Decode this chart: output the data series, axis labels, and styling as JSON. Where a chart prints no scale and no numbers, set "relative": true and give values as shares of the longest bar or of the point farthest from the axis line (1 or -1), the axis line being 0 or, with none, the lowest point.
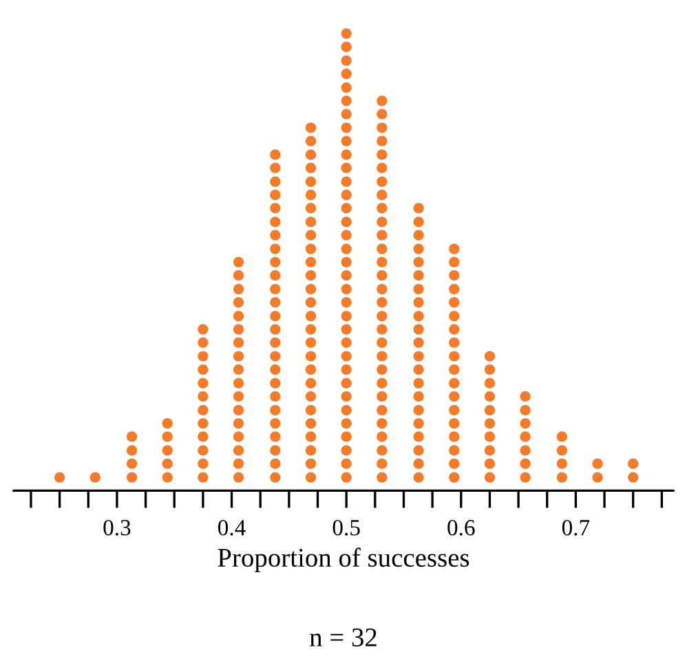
{
  "chart_data": {
    "type": "scatter",
    "xlabel": "Proportion of successes",
    "annotations": [
      "n = 32"
    ],
    "xlim": [
      0.21,
      0.785
    ],
    "xticks": [
      {
        "value": 0.225,
        "label": null
      },
      {
        "value": 0.25,
        "label": null
      },
      {
        "value": 0.275,
        "label": null
      },
      0.3,
      {
        "value": 0.325,
        "label": null
      },
      {
        "value": 0.35,
        "label": null
      },
      {
        "value": 0.375,
        "label": null
      },
      0.4,
      {
        "value": 0.425,
        "label": null
      },
      {
        "value": 0.45,
        "label": null
      },
      {
        "value": 0.475,
        "label": null
      },
      0.5,
      {
        "value": 0.525,
        "label": null
      },
      {
        "value": 0.55,
        "label": null
      },
      {
        "value": 0.575,
        "label": null
      },
      0.6,
      {
        "value": 0.625,
        "label": null
      },
      {
        "value": 0.65,
        "label": null
      },
      {
        "value": 0.675,
        "label": null
      },
      0.7,
      {
        "value": 0.725,
        "label": null
      },
      {
        "value": 0.75,
        "label": null
      },
      {
        "value": 0.775,
        "label": null
      }
    ],
    "relative": true,
    "tick_labels": "x",
    "marker": "circle",
    "series": [
      {
        "color": "#f47b2a",
        "x": [
          0.25
        ],
        "values": [
          0.029
        ]
      },
      {
        "color": "#f47b2a",
        "x": [
          0.281
        ],
        "values": [
          0.029
        ]
      },
      {
        "color": "#f47b2a",
        "x": [
          0.313,
          0.313,
          0.313,
          0.313
        ],
        "values": [
          0.029,
          0.059,
          0.088,
          0.118
        ]
      },
      {
        "color": "#f47b2a",
        "x": [
          0.344,
          0.344,
          0.344,
          0.344,
          0.344
        ],
        "values": [
          0.029,
          0.059,
          0.088,
          0.118,
          0.147
        ]
      },
      {
        "color": "#f47b2a",
        "x": [
          0.375,
          0.375,
          0.375,
          0.375,
          0.375,
          0.375,
          0.375,
          0.375,
          0.375,
          0.375,
          0.375,
          0.375
        ],
        "values": [
          0.029,
          0.059,
          0.088,
          0.118,
          0.147,
          0.176,
          0.206,
          0.235,
          0.265,
          0.294,
          0.324,
          0.353
        ]
      },
      {
        "color": "#f47b2a",
        "x": [
          0.406,
          0.406,
          0.406,
          0.406,
          0.406,
          0.406,
          0.406,
          0.406,
          0.406,
          0.406,
          0.406,
          0.406,
          0.406,
          0.406,
          0.406,
          0.406,
          0.406
        ],
        "values": [
          0.029,
          0.059,
          0.088,
          0.118,
          0.147,
          0.176,
          0.206,
          0.235,
          0.265,
          0.294,
          0.324,
          0.353,
          0.382,
          0.412,
          0.441,
          0.471,
          0.5
        ]
      },
      {
        "color": "#f47b2a",
        "x": [
          0.438,
          0.438,
          0.438,
          0.438,
          0.438,
          0.438,
          0.438,
          0.438,
          0.438,
          0.438,
          0.438,
          0.438,
          0.438,
          0.438,
          0.438,
          0.438,
          0.438,
          0.438,
          0.438,
          0.438,
          0.438,
          0.438,
          0.438,
          0.438,
          0.438
        ],
        "values": [
          0.029,
          0.059,
          0.088,
          0.118,
          0.147,
          0.176,
          0.206,
          0.235,
          0.265,
          0.294,
          0.324,
          0.353,
          0.382,
          0.412,
          0.441,
          0.471,
          0.5,
          0.529,
          0.559,
          0.588,
          0.618,
          0.647,
          0.676,
          0.706,
          0.735
        ]
      },
      {
        "color": "#f47b2a",
        "x": [
          0.469,
          0.469,
          0.469,
          0.469,
          0.469,
          0.469,
          0.469,
          0.469,
          0.469,
          0.469,
          0.469,
          0.469,
          0.469,
          0.469,
          0.469,
          0.469,
          0.469,
          0.469,
          0.469,
          0.469,
          0.469,
          0.469,
          0.469,
          0.469,
          0.469,
          0.469,
          0.469
        ],
        "values": [
          0.029,
          0.059,
          0.088,
          0.118,
          0.147,
          0.176,
          0.206,
          0.235,
          0.265,
          0.294,
          0.324,
          0.353,
          0.382,
          0.412,
          0.441,
          0.471,
          0.5,
          0.529,
          0.559,
          0.588,
          0.618,
          0.647,
          0.676,
          0.706,
          0.735,
          0.765,
          0.794
        ]
      },
      {
        "color": "#f47b2a",
        "x": [
          0.5,
          0.5,
          0.5,
          0.5,
          0.5,
          0.5,
          0.5,
          0.5,
          0.5,
          0.5,
          0.5,
          0.5,
          0.5,
          0.5,
          0.5,
          0.5,
          0.5,
          0.5,
          0.5,
          0.5,
          0.5,
          0.5,
          0.5,
          0.5,
          0.5,
          0.5,
          0.5,
          0.5,
          0.5,
          0.5,
          0.5,
          0.5,
          0.5,
          0.5
        ],
        "values": [
          0.029,
          0.059,
          0.088,
          0.118,
          0.147,
          0.176,
          0.206,
          0.235,
          0.265,
          0.294,
          0.324,
          0.353,
          0.382,
          0.412,
          0.441,
          0.471,
          0.5,
          0.529,
          0.559,
          0.588,
          0.618,
          0.647,
          0.676,
          0.706,
          0.735,
          0.765,
          0.794,
          0.824,
          0.853,
          0.882,
          0.912,
          0.941,
          0.971,
          1
        ]
      },
      {
        "color": "#f47b2a",
        "x": [
          0.531,
          0.531,
          0.531,
          0.531,
          0.531,
          0.531,
          0.531,
          0.531,
          0.531,
          0.531,
          0.531,
          0.531,
          0.531,
          0.531,
          0.531,
          0.531,
          0.531,
          0.531,
          0.531,
          0.531,
          0.531,
          0.531,
          0.531,
          0.531,
          0.531,
          0.531,
          0.531,
          0.531,
          0.531
        ],
        "values": [
          0.029,
          0.059,
          0.088,
          0.118,
          0.147,
          0.176,
          0.206,
          0.235,
          0.265,
          0.294,
          0.324,
          0.353,
          0.382,
          0.412,
          0.441,
          0.471,
          0.5,
          0.529,
          0.559,
          0.588,
          0.618,
          0.647,
          0.676,
          0.706,
          0.735,
          0.765,
          0.794,
          0.824,
          0.853
        ]
      },
      {
        "color": "#f47b2a",
        "x": [
          0.563,
          0.563,
          0.563,
          0.563,
          0.563,
          0.563,
          0.563,
          0.563,
          0.563,
          0.563,
          0.563,
          0.563,
          0.563,
          0.563,
          0.563,
          0.563,
          0.563,
          0.563,
          0.563,
          0.563,
          0.563
        ],
        "values": [
          0.029,
          0.059,
          0.088,
          0.118,
          0.147,
          0.176,
          0.206,
          0.235,
          0.265,
          0.294,
          0.324,
          0.353,
          0.382,
          0.412,
          0.441,
          0.471,
          0.5,
          0.529,
          0.559,
          0.588,
          0.618
        ]
      },
      {
        "color": "#f47b2a",
        "x": [
          0.594,
          0.594,
          0.594,
          0.594,
          0.594,
          0.594,
          0.594,
          0.594,
          0.594,
          0.594,
          0.594,
          0.594,
          0.594,
          0.594,
          0.594,
          0.594,
          0.594,
          0.594
        ],
        "values": [
          0.029,
          0.059,
          0.088,
          0.118,
          0.147,
          0.176,
          0.206,
          0.235,
          0.265,
          0.294,
          0.324,
          0.353,
          0.382,
          0.412,
          0.441,
          0.471,
          0.5,
          0.529
        ]
      },
      {
        "color": "#f47b2a",
        "x": [
          0.625,
          0.625,
          0.625,
          0.625,
          0.625,
          0.625,
          0.625,
          0.625,
          0.625,
          0.625
        ],
        "values": [
          0.029,
          0.059,
          0.088,
          0.118,
          0.147,
          0.176,
          0.206,
          0.235,
          0.265,
          0.294
        ]
      },
      {
        "color": "#f47b2a",
        "x": [
          0.656,
          0.656,
          0.656,
          0.656,
          0.656,
          0.656,
          0.656
        ],
        "values": [
          0.029,
          0.059,
          0.088,
          0.118,
          0.147,
          0.176,
          0.206
        ]
      },
      {
        "color": "#f47b2a",
        "x": [
          0.688,
          0.688,
          0.688,
          0.688
        ],
        "values": [
          0.029,
          0.059,
          0.088,
          0.118
        ]
      },
      {
        "color": "#f47b2a",
        "x": [
          0.719,
          0.719
        ],
        "values": [
          0.029,
          0.059
        ]
      },
      {
        "color": "#f47b2a",
        "x": [
          0.75,
          0.75
        ],
        "values": [
          0.029,
          0.059
        ]
      }
    ]
  }
}
